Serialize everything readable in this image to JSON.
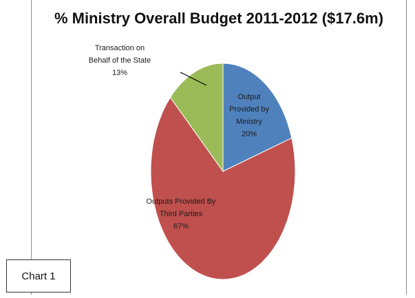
{
  "caption": "Chart 1",
  "colors": {
    "output_ministry": "#4f81bd",
    "third_parties": "#c0504d",
    "state": "#9bbb59"
  },
  "chart_data": {
    "type": "pie",
    "title": "% Ministry Overall Budget 2011-2012 ($17.6m)",
    "slices": [
      {
        "label_lines": [
          "Output",
          "Provided by",
          "Ministry"
        ],
        "value_label": "20%",
        "value": 20,
        "color": "#4f81bd"
      },
      {
        "label_lines": [
          "Outputs Provided By",
          "Third Parties"
        ],
        "value_label": "67%",
        "value": 67,
        "color": "#c0504d"
      },
      {
        "label_lines": [
          "Transaction on",
          "Behalf of the State"
        ],
        "value_label": "13%",
        "value": 13,
        "color": "#9bbb59"
      }
    ],
    "legend": "none"
  }
}
